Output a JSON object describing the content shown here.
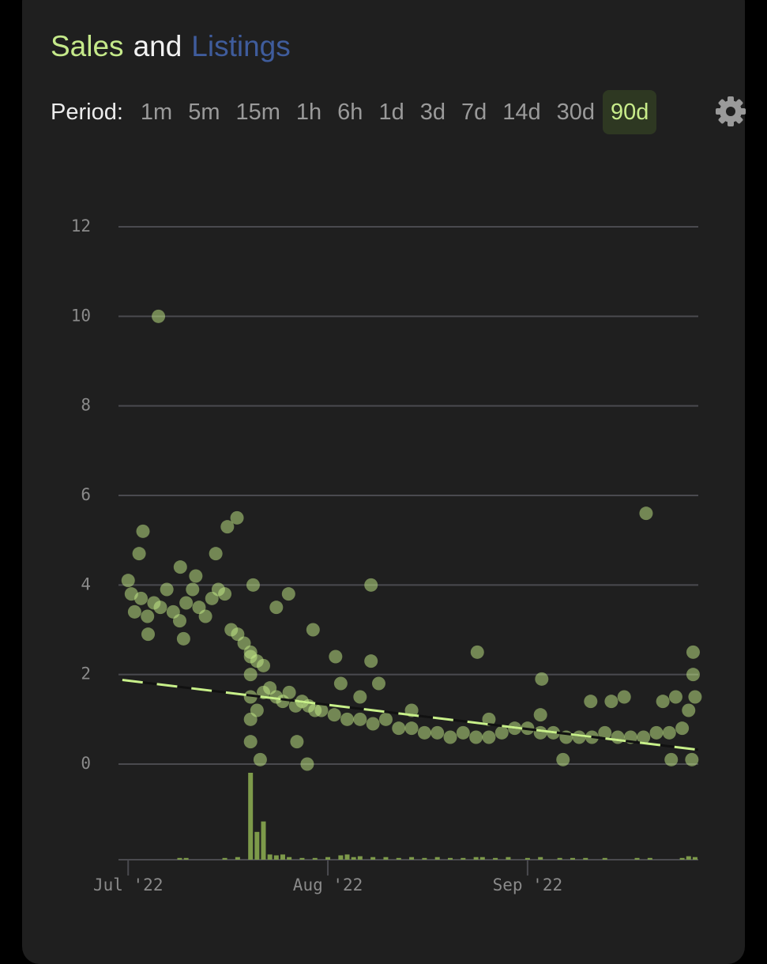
{
  "header": {
    "title_parts": [
      "Sales",
      "and",
      "Listings"
    ]
  },
  "period": {
    "label": "Period:",
    "options": [
      "1m",
      "5m",
      "15m",
      "1h",
      "6h",
      "1d",
      "3d",
      "7d",
      "14d",
      "30d",
      "90d"
    ],
    "selected_index": 10
  },
  "chart_data": {
    "type": "scatter",
    "color": "#c8f08a",
    "grid": true,
    "ylim": [
      0,
      12
    ],
    "yticks": [
      0,
      2,
      4,
      6,
      8,
      10,
      12
    ],
    "xlim": [
      -1.5,
      88.5
    ],
    "xticks": [
      {
        "value": 0,
        "label": "Jul '22"
      },
      {
        "value": 31,
        "label": "Aug '22"
      },
      {
        "value": 62,
        "label": "Sep '22"
      }
    ],
    "x": [
      4.7,
      2.3,
      1.7,
      16.9,
      15.4,
      13.6,
      8.1,
      10.5,
      37.7,
      80.4,
      24.9,
      23.0,
      19.4,
      3.1,
      8.6,
      28.7,
      26.2,
      27.8,
      20.5,
      54.2,
      64.2,
      67.5,
      87.7,
      87.7,
      84.3,
      87.5,
      32.2,
      37.7,
      38.9,
      71.8,
      0,
      0.5,
      1,
      2,
      3,
      4,
      5,
      6,
      7,
      8,
      9,
      10,
      11,
      12,
      13,
      14,
      15,
      16,
      17,
      18,
      19,
      19,
      19,
      19,
      19,
      19,
      20,
      20,
      21,
      21,
      22,
      23,
      24,
      25,
      26,
      27,
      28,
      29,
      30,
      32,
      34,
      36,
      38,
      40,
      42,
      44,
      46,
      48,
      50,
      52,
      54,
      56,
      58,
      60,
      62,
      64,
      66,
      68,
      70,
      72,
      74,
      76,
      78,
      80,
      82,
      84,
      86,
      87,
      88,
      33,
      36,
      44,
      56,
      64,
      75,
      77,
      83,
      85
    ],
    "values": [
      10.0,
      5.2,
      4.7,
      5.5,
      5.3,
      4.7,
      4.4,
      4.2,
      4.0,
      5.6,
      3.8,
      3.5,
      4.0,
      2.9,
      2.8,
      3.0,
      0.5,
      0.0,
      0.1,
      2.5,
      1.9,
      0.1,
      2.5,
      2.0,
      0.1,
      0.1,
      2.4,
      2.3,
      1.8,
      1.4,
      4.1,
      3.8,
      3.4,
      3.7,
      3.3,
      3.6,
      3.5,
      3.9,
      3.4,
      3.2,
      3.6,
      3.9,
      3.5,
      3.3,
      3.7,
      3.9,
      3.8,
      3.0,
      2.9,
      2.7,
      2.5,
      0.5,
      1.0,
      1.5,
      2.0,
      2.4,
      1.2,
      2.3,
      1.6,
      2.2,
      1.7,
      1.5,
      1.4,
      1.6,
      1.3,
      1.4,
      1.3,
      1.2,
      1.2,
      1.1,
      1.0,
      1.0,
      0.9,
      1.0,
      0.8,
      0.8,
      0.7,
      0.7,
      0.6,
      0.7,
      0.6,
      0.6,
      0.7,
      0.8,
      0.8,
      0.7,
      0.7,
      0.6,
      0.6,
      0.6,
      0.7,
      0.6,
      0.6,
      0.6,
      0.7,
      0.7,
      0.8,
      1.2,
      1.5,
      1.8,
      1.5,
      1.2,
      1.0,
      1.1,
      1.4,
      1.5,
      1.4,
      1.5
    ],
    "trend": {
      "color": "#c8f08a",
      "x": [
        -0.9,
        88.5
      ],
      "values": [
        1.88,
        0.32
      ]
    },
    "volume": {
      "color": "#7d9a4a",
      "ylim": [
        0,
        100
      ],
      "x": [
        8,
        9,
        15,
        17,
        19,
        20,
        21,
        22,
        23,
        24,
        25,
        27,
        29,
        31,
        33,
        34,
        35,
        36,
        38,
        40,
        42,
        44,
        46,
        48,
        50,
        52,
        54,
        55,
        57,
        59,
        62,
        64,
        67,
        69,
        71,
        74,
        79,
        81,
        86,
        87,
        88
      ],
      "values": [
        2,
        2,
        2,
        3,
        100,
        32,
        44,
        6,
        5,
        6,
        3,
        2,
        2,
        3,
        5,
        6,
        3,
        4,
        3,
        3,
        2,
        3,
        2,
        3,
        2,
        2,
        3,
        3,
        2,
        3,
        2,
        3,
        2,
        2,
        2,
        2,
        2,
        2,
        2,
        4,
        3
      ]
    }
  }
}
